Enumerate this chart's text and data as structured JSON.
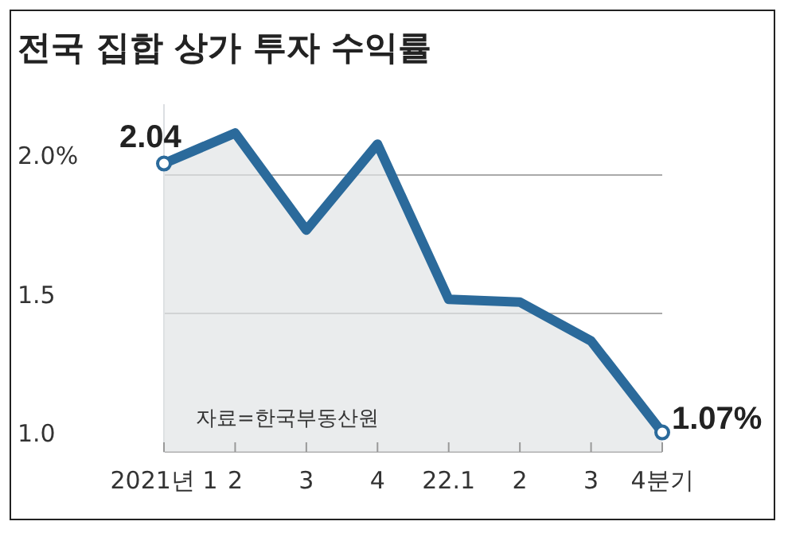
{
  "chart_data": {
    "type": "area",
    "title": "전국 집합 상가 투자 수익률",
    "categories": [
      "2021년 1",
      "2",
      "3",
      "4",
      "22.1",
      "2",
      "3",
      "4분기"
    ],
    "series": [
      {
        "color": "#2b6a9b",
        "values": [
          2.04,
          2.15,
          1.8,
          2.11,
          1.55,
          1.54,
          1.4,
          1.07
        ],
        "value_labels": [
          "2.04",
          null,
          null,
          null,
          null,
          null,
          null,
          "1.07%"
        ]
      }
    ],
    "ylim": [
      1.0,
      2.25
    ],
    "yticks": [
      {
        "value": 1.0,
        "label": "1.0"
      },
      {
        "value": 1.5,
        "label": "1.5"
      },
      {
        "value": 2.0,
        "label": "2.0%"
      }
    ],
    "grid": "y",
    "legend": false,
    "annotations": [
      "자료=한국부동산원"
    ]
  }
}
